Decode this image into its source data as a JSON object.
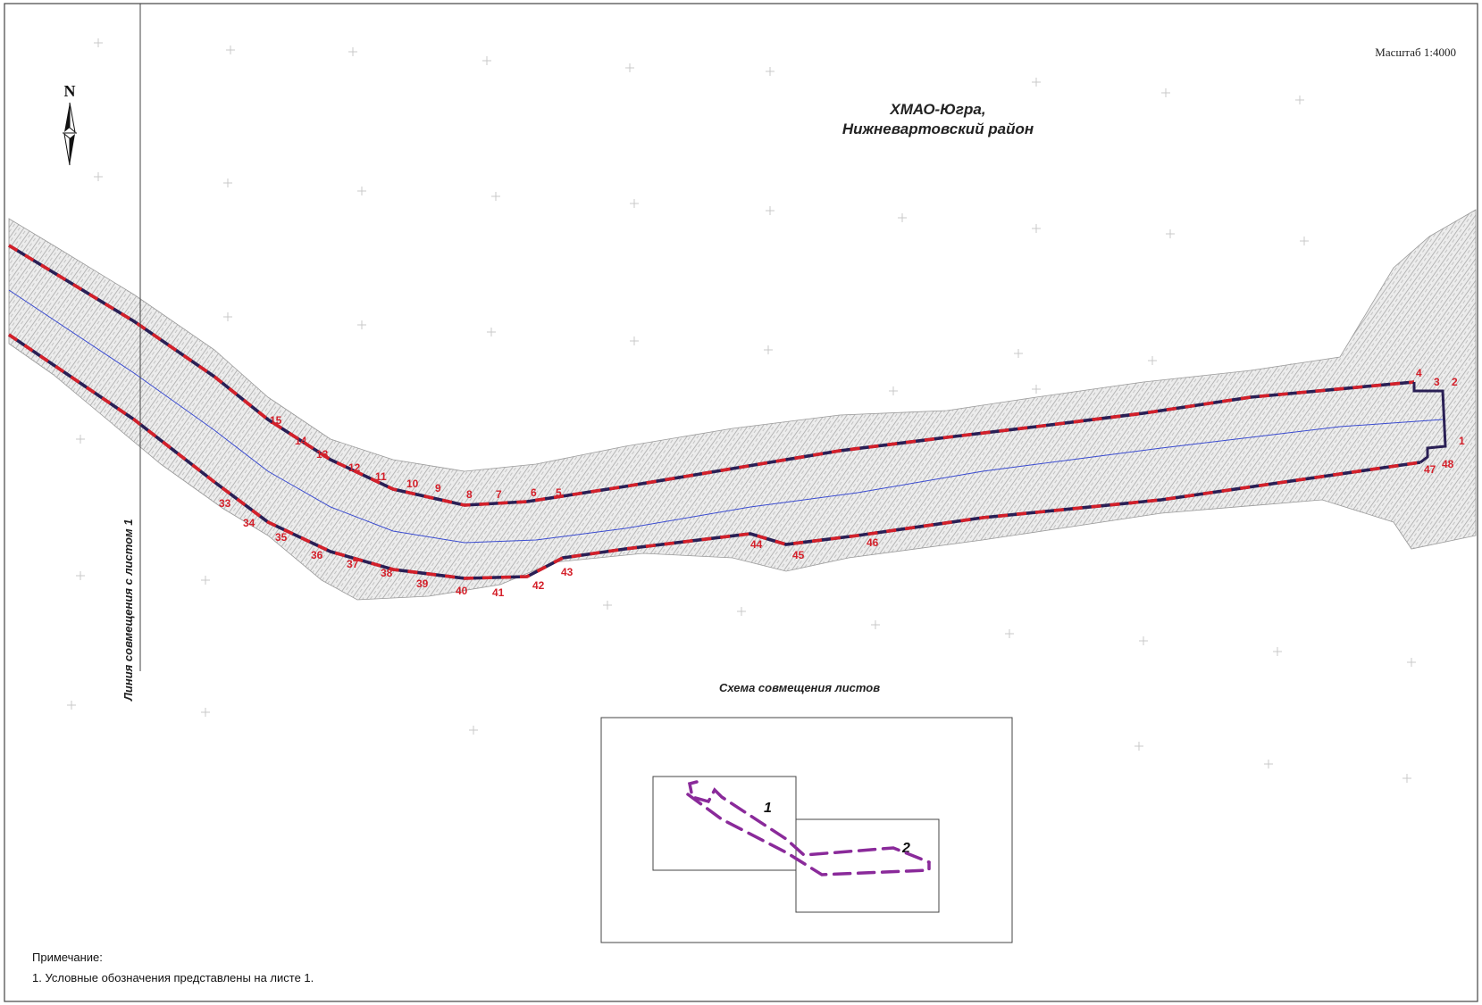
{
  "header": {
    "scale_label": "Масштаб 1:4000",
    "region_line1": "ХМАО-Югра,",
    "region_line2": "Нижневартовский район"
  },
  "north_arrow": {
    "letter": "N",
    "icon": "north-arrow-icon"
  },
  "sheet_line_label": "Линия совмещения с листом 1",
  "points": [
    {
      "n": "1"
    },
    {
      "n": "2"
    },
    {
      "n": "3"
    },
    {
      "n": "4"
    },
    {
      "n": "5"
    },
    {
      "n": "6"
    },
    {
      "n": "7"
    },
    {
      "n": "8"
    },
    {
      "n": "9"
    },
    {
      "n": "10"
    },
    {
      "n": "11"
    },
    {
      "n": "12"
    },
    {
      "n": "13"
    },
    {
      "n": "14"
    },
    {
      "n": "15"
    },
    {
      "n": "33"
    },
    {
      "n": "34"
    },
    {
      "n": "35"
    },
    {
      "n": "36"
    },
    {
      "n": "37"
    },
    {
      "n": "38"
    },
    {
      "n": "39"
    },
    {
      "n": "40"
    },
    {
      "n": "41"
    },
    {
      "n": "42"
    },
    {
      "n": "43"
    },
    {
      "n": "44"
    },
    {
      "n": "45"
    },
    {
      "n": "46"
    },
    {
      "n": "47"
    },
    {
      "n": "48"
    }
  ],
  "overview": {
    "caption": "Схема совмещения листов",
    "sheet1_label": "1",
    "sheet2_label": "2"
  },
  "note": {
    "title": "Примечание:",
    "line1": "1. Условные обозначения представлены на листе 1."
  },
  "colors": {
    "boundary_red": "#d4202a",
    "boundary_dark": "#2a1f55",
    "axis_blue": "#3a4bd0",
    "route_purple": "#8a2a9a",
    "hatch_gray": "#bdbdbd"
  }
}
